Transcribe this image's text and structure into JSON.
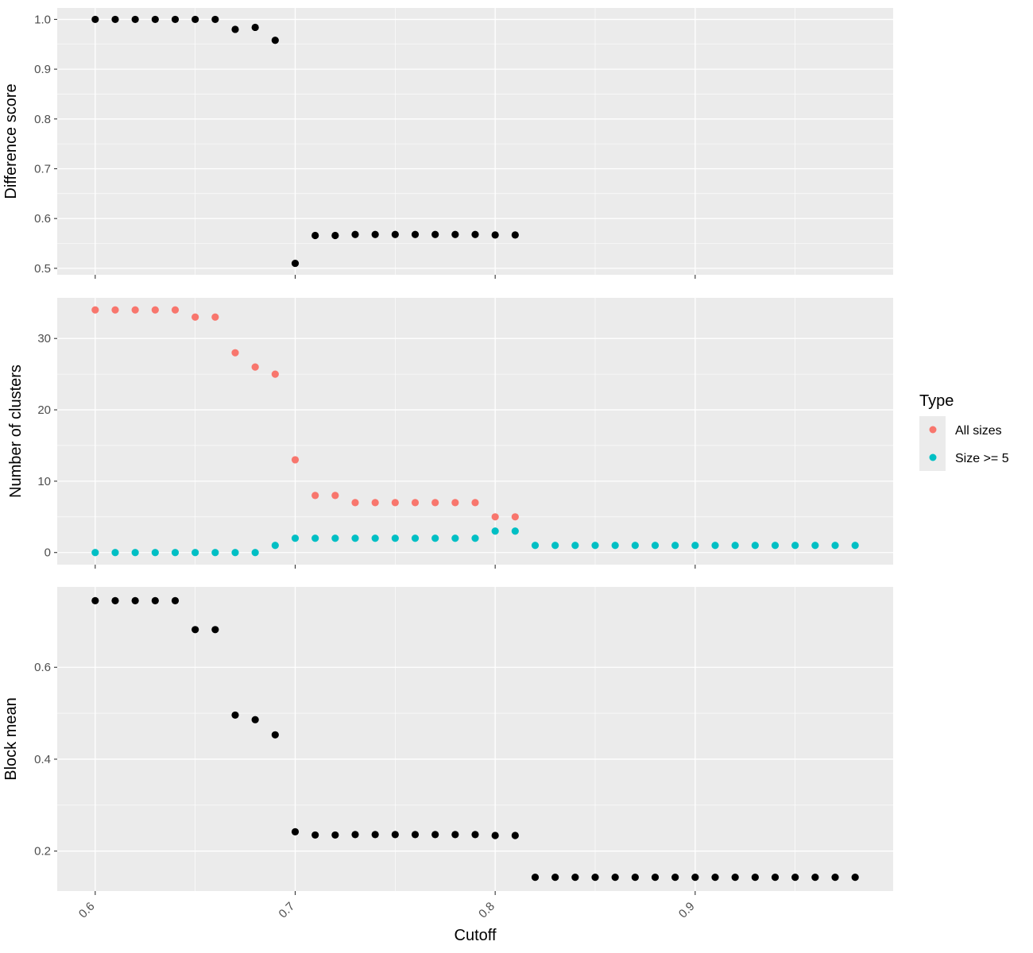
{
  "chart_data": {
    "type": "scatter",
    "x_label": "Cutoff",
    "x_ticks": [
      0.6,
      0.7,
      0.8,
      0.9
    ],
    "x_tick_labels": [
      "0.6",
      "0.7",
      "0.8",
      "0.9"
    ],
    "x_range": [
      0.581,
      0.999
    ],
    "colors": {
      "all_sizes": "#F8766D",
      "size_ge_5": "#00BFC4",
      "default": "#000000",
      "panel_bg": "#EBEBEB",
      "grid": "#FFFFFF"
    },
    "legend": {
      "title": "Type",
      "placement": "right",
      "items": [
        {
          "label": "All sizes",
          "color": "#F8766D"
        },
        {
          "label": "Size >= 5",
          "color": "#00BFC4"
        }
      ]
    },
    "panels": [
      {
        "id": "difference",
        "y_label": "Difference score",
        "y_range": [
          0.487,
          1.023
        ],
        "y_ticks": [
          0.5,
          0.6,
          0.7,
          0.8,
          0.9,
          1.0
        ],
        "y_tick_labels": [
          "0.5",
          "0.6",
          "0.7",
          "0.8",
          "0.9",
          "1.0"
        ],
        "series": [
          {
            "color": "#000000",
            "x": [
              0.6,
              0.61,
              0.62,
              0.63,
              0.64,
              0.65,
              0.66,
              0.67,
              0.68,
              0.69,
              0.7,
              0.71,
              0.72,
              0.73,
              0.74,
              0.75,
              0.76,
              0.77,
              0.78,
              0.79,
              0.8,
              0.81
            ],
            "y": [
              1.0,
              1.0,
              1.0,
              1.0,
              1.0,
              1.0,
              1.0,
              0.98,
              0.984,
              0.958,
              0.51,
              0.566,
              0.566,
              0.568,
              0.568,
              0.568,
              0.568,
              0.568,
              0.568,
              0.568,
              0.567,
              0.567
            ]
          }
        ]
      },
      {
        "id": "clusters",
        "y_label": "Number of clusters",
        "y_range": [
          -1.7,
          35.7
        ],
        "y_ticks": [
          0,
          10,
          20,
          30
        ],
        "y_tick_labels": [
          "0",
          "10",
          "20",
          "30"
        ],
        "series": [
          {
            "name": "All sizes",
            "color": "#F8766D",
            "x": [
              0.6,
              0.61,
              0.62,
              0.63,
              0.64,
              0.65,
              0.66,
              0.67,
              0.68,
              0.69,
              0.7,
              0.71,
              0.72,
              0.73,
              0.74,
              0.75,
              0.76,
              0.77,
              0.78,
              0.79,
              0.8,
              0.81
            ],
            "y": [
              34,
              34,
              34,
              34,
              34,
              33,
              33,
              28,
              26,
              25,
              13,
              8,
              8,
              7,
              7,
              7,
              7,
              7,
              7,
              7,
              5,
              5
            ]
          },
          {
            "name": "Size >= 5",
            "color": "#00BFC4",
            "x": [
              0.6,
              0.61,
              0.62,
              0.63,
              0.64,
              0.65,
              0.66,
              0.67,
              0.68,
              0.69,
              0.7,
              0.71,
              0.72,
              0.73,
              0.74,
              0.75,
              0.76,
              0.77,
              0.78,
              0.79,
              0.8,
              0.81,
              0.82,
              0.83,
              0.84,
              0.85,
              0.86,
              0.87,
              0.88,
              0.89,
              0.9,
              0.91,
              0.92,
              0.93,
              0.94,
              0.95,
              0.96,
              0.97,
              0.98
            ],
            "y": [
              0,
              0,
              0,
              0,
              0,
              0,
              0,
              0,
              0,
              1,
              2,
              2,
              2,
              2,
              2,
              2,
              2,
              2,
              2,
              2,
              3,
              3,
              1,
              1,
              1,
              1,
              1,
              1,
              1,
              1,
              1,
              1,
              1,
              1,
              1,
              1,
              1,
              1,
              1
            ]
          }
        ]
      },
      {
        "id": "block",
        "y_label": "Block mean",
        "y_range": [
          0.113,
          0.775
        ],
        "y_ticks": [
          0.2,
          0.4,
          0.6
        ],
        "y_tick_labels": [
          "0.2",
          "0.4",
          "0.6"
        ],
        "series": [
          {
            "color": "#000000",
            "x": [
              0.6,
              0.61,
              0.62,
              0.63,
              0.64,
              0.65,
              0.66,
              0.67,
              0.68,
              0.69,
              0.7,
              0.71,
              0.72,
              0.73,
              0.74,
              0.75,
              0.76,
              0.77,
              0.78,
              0.79,
              0.8,
              0.81,
              0.82,
              0.83,
              0.84,
              0.85,
              0.86,
              0.87,
              0.88,
              0.89,
              0.9,
              0.91,
              0.92,
              0.93,
              0.94,
              0.95,
              0.96,
              0.97,
              0.98
            ],
            "y": [
              0.745,
              0.745,
              0.745,
              0.745,
              0.745,
              0.682,
              0.682,
              0.496,
              0.486,
              0.453,
              0.242,
              0.235,
              0.235,
              0.236,
              0.236,
              0.236,
              0.236,
              0.236,
              0.236,
              0.236,
              0.234,
              0.234,
              0.143,
              0.143,
              0.143,
              0.143,
              0.143,
              0.143,
              0.143,
              0.143,
              0.143,
              0.143,
              0.143,
              0.143,
              0.143,
              0.143,
              0.143,
              0.143,
              0.143
            ]
          }
        ]
      }
    ]
  }
}
